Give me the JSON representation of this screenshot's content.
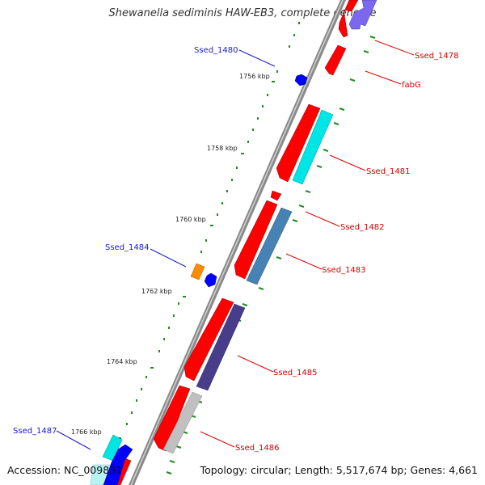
{
  "title": "Shewanella sediminis HAW-EB3, complete genome",
  "footer": {
    "accession": "Accession: NC_009831",
    "topology": "Topology: circular; Length: 5,517,674 bp; Genes: 4,661"
  },
  "ticks": [
    "1756 kbp",
    "1758 kbp",
    "1760 kbp",
    "1762 kbp",
    "1764 kbp",
    "1766 kbp"
  ],
  "gene_labels": [
    {
      "text": "Ssed_1478",
      "color": "#d40000"
    },
    {
      "text": "fabG",
      "color": "#d40000"
    },
    {
      "text": "Ssed_1481",
      "color": "#d40000"
    },
    {
      "text": "Ssed_1482",
      "color": "#d40000"
    },
    {
      "text": "Ssed_1483",
      "color": "#d40000"
    },
    {
      "text": "Ssed_1485",
      "color": "#d40000"
    },
    {
      "text": "Ssed_1486",
      "color": "#d40000"
    },
    {
      "text": "Ssed_1480",
      "color": "#1a1acc"
    },
    {
      "text": "Ssed_1484",
      "color": "#1a1acc"
    },
    {
      "text": "Ssed_1487",
      "color": "#1a1acc"
    }
  ],
  "colors": {
    "cds": "#ff0000",
    "cyan": "#00e5e5",
    "steelblue": "#4682b4",
    "slateblue": "#483d8b",
    "lavender": "#7b68ee",
    "gray": "#c0c0c0",
    "blue": "#0000ff",
    "orange": "#ff8c00",
    "tick": "#228b22"
  }
}
